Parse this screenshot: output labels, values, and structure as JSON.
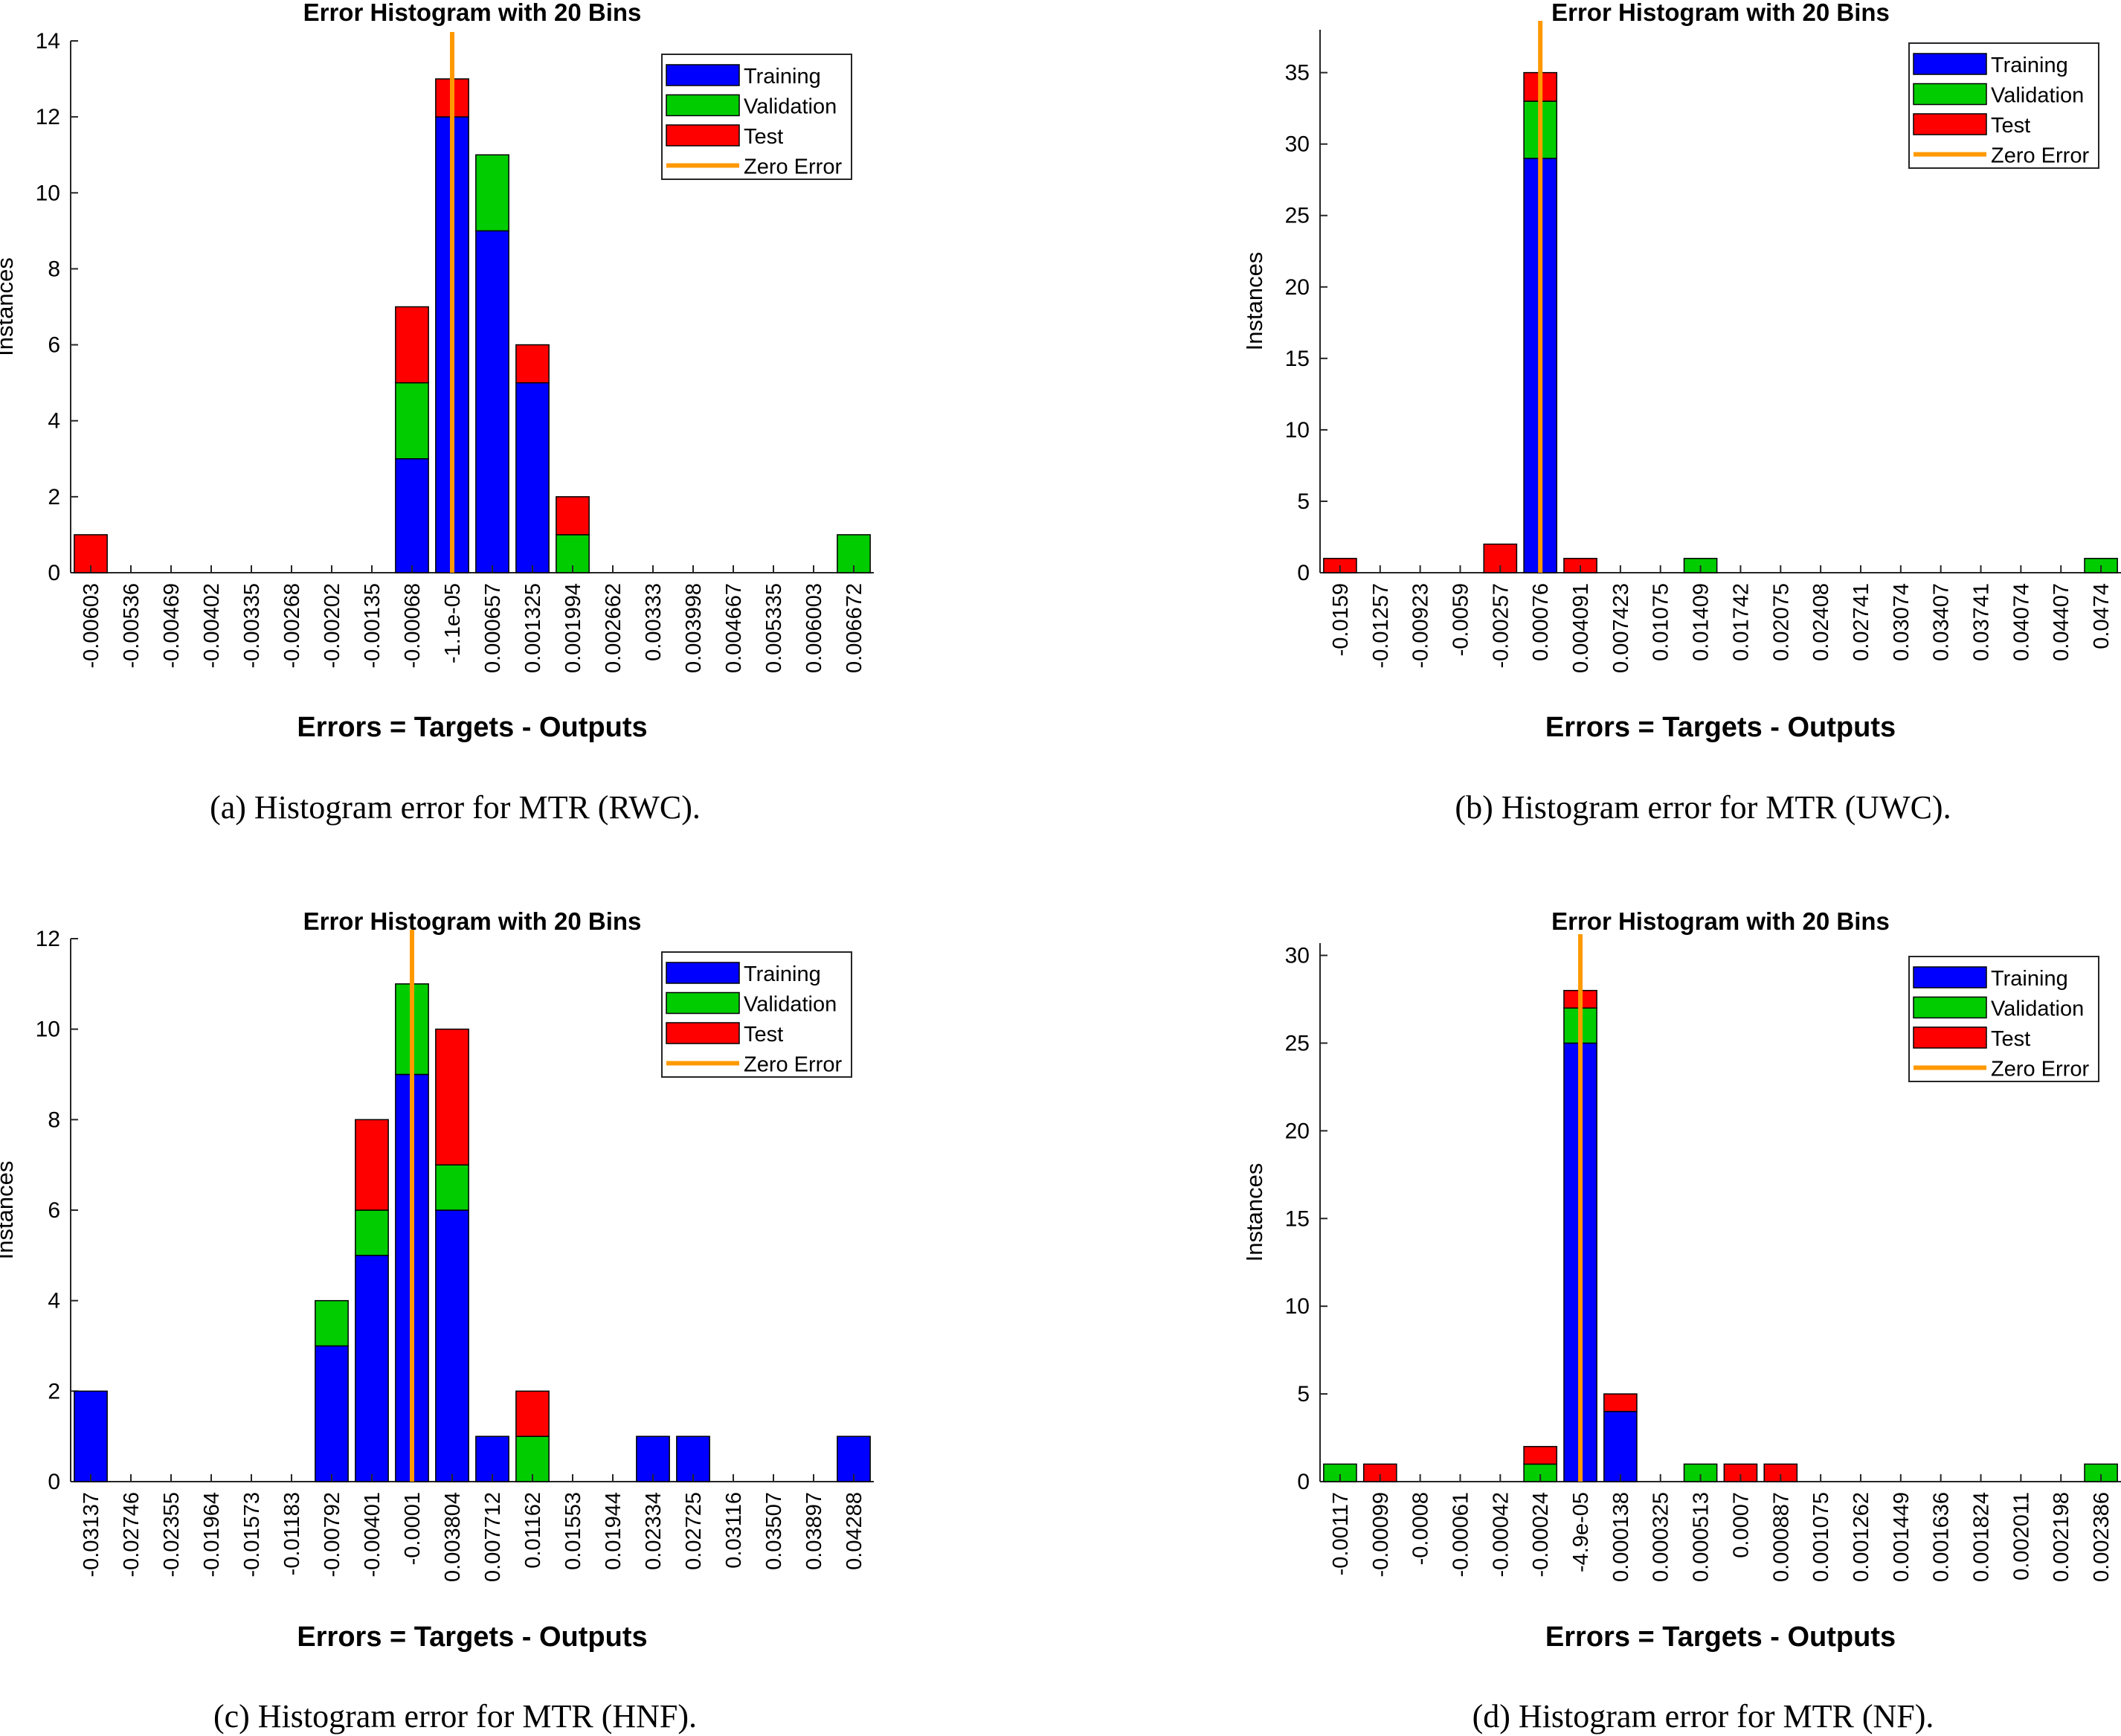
{
  "chart_data": [
    {
      "type": "bar",
      "stacked": true,
      "title": "Error Histogram with 20 Bins",
      "xlabel": "Errors = Targets - Outputs",
      "ylabel": "Instances",
      "caption": "(a) Histogram error for MTR (RWC).",
      "ylim": [
        0,
        14
      ],
      "yticks": [
        "0",
        "2",
        "4",
        "6",
        "8",
        "10",
        "12",
        "14"
      ],
      "zero_error_index": 9,
      "categories": [
        "-0.00603",
        "-0.00536",
        "-0.00469",
        "-0.00402",
        "-0.00335",
        "-0.00268",
        "-0.00202",
        "-0.00135",
        "-0.00068",
        "-1.1e-05",
        "0.000657",
        "0.001325",
        "0.001994",
        "0.002662",
        "0.00333",
        "0.003998",
        "0.004667",
        "0.005335",
        "0.006003",
        "0.006672"
      ],
      "series": [
        {
          "name": "Training",
          "color": "#0000ff",
          "values": [
            0,
            0,
            0,
            0,
            0,
            0,
            0,
            0,
            3,
            12,
            9,
            5,
            0,
            0,
            0,
            0,
            0,
            0,
            0,
            0
          ]
        },
        {
          "name": "Validation",
          "color": "#00cc00",
          "values": [
            0,
            0,
            0,
            0,
            0,
            0,
            0,
            0,
            2,
            0,
            2,
            0,
            1,
            0,
            0,
            0,
            0,
            0,
            0,
            1
          ]
        },
        {
          "name": "Test",
          "color": "#ff0000",
          "values": [
            1,
            0,
            0,
            0,
            0,
            0,
            0,
            0,
            2,
            1,
            0,
            1,
            1,
            0,
            0,
            0,
            0,
            0,
            0,
            0
          ]
        }
      ],
      "legend": [
        "Training",
        "Validation",
        "Test",
        "Zero Error"
      ],
      "legend_position": "top-right"
    },
    {
      "type": "bar",
      "stacked": true,
      "title": "Error Histogram with 20 Bins",
      "xlabel": "Errors = Targets - Outputs",
      "ylabel": "Instances",
      "caption": "(b) Histogram error for MTR (UWC).",
      "ylim": [
        0,
        38
      ],
      "yticks": [
        "0",
        "5",
        "10",
        "15",
        "20",
        "25",
        "30",
        "35"
      ],
      "zero_error_index": 5,
      "categories": [
        "-0.0159",
        "-0.01257",
        "-0.00923",
        "-0.0059",
        "-0.00257",
        "0.00076",
        "0.004091",
        "0.007423",
        "0.01075",
        "0.01409",
        "0.01742",
        "0.02075",
        "0.02408",
        "0.02741",
        "0.03074",
        "0.03407",
        "0.03741",
        "0.04074",
        "0.04407",
        "0.0474"
      ],
      "series": [
        {
          "name": "Training",
          "color": "#0000ff",
          "values": [
            0,
            0,
            0,
            0,
            0,
            29,
            0,
            0,
            0,
            0,
            0,
            0,
            0,
            0,
            0,
            0,
            0,
            0,
            0,
            0
          ]
        },
        {
          "name": "Validation",
          "color": "#00cc00",
          "values": [
            0,
            0,
            0,
            0,
            0,
            4,
            0,
            0,
            0,
            1,
            0,
            0,
            0,
            0,
            0,
            0,
            0,
            0,
            0,
            1
          ]
        },
        {
          "name": "Test",
          "color": "#ff0000",
          "values": [
            1,
            0,
            0,
            0,
            2,
            2,
            1,
            0,
            0,
            0,
            0,
            0,
            0,
            0,
            0,
            0,
            0,
            0,
            0,
            0
          ]
        }
      ],
      "legend": [
        "Training",
        "Validation",
        "Test",
        "Zero Error"
      ],
      "legend_position": "top-right"
    },
    {
      "type": "bar",
      "stacked": true,
      "title": "Error Histogram with 20 Bins",
      "xlabel": "Errors = Targets - Outputs",
      "ylabel": "Instances",
      "caption": "(c) Histogram error for MTR (HNF).",
      "ylim": [
        0,
        12
      ],
      "yticks": [
        "0",
        "2",
        "4",
        "6",
        "8",
        "10",
        "12"
      ],
      "zero_error_index": 8,
      "categories": [
        "-0.03137",
        "-0.02746",
        "-0.02355",
        "-0.01964",
        "-0.01573",
        "-0.01183",
        "-0.00792",
        "-0.00401",
        "-0.0001",
        "0.003804",
        "0.007712",
        "0.01162",
        "0.01553",
        "0.01944",
        "0.02334",
        "0.02725",
        "0.03116",
        "0.03507",
        "0.03897",
        "0.04288"
      ],
      "series": [
        {
          "name": "Training",
          "color": "#0000ff",
          "values": [
            2,
            0,
            0,
            0,
            0,
            0,
            3,
            5,
            9,
            6,
            1,
            0,
            0,
            0,
            1,
            1,
            0,
            0,
            0,
            1
          ]
        },
        {
          "name": "Validation",
          "color": "#00cc00",
          "values": [
            0,
            0,
            0,
            0,
            0,
            0,
            1,
            1,
            2,
            1,
            0,
            1,
            0,
            0,
            0,
            0,
            0,
            0,
            0,
            0
          ]
        },
        {
          "name": "Test",
          "color": "#ff0000",
          "values": [
            0,
            0,
            0,
            0,
            0,
            0,
            0,
            2,
            0,
            3,
            0,
            1,
            0,
            0,
            0,
            0,
            0,
            0,
            0,
            0
          ]
        }
      ],
      "legend": [
        "Training",
        "Validation",
        "Test",
        "Zero Error"
      ],
      "legend_position": "top-right"
    },
    {
      "type": "bar",
      "stacked": true,
      "title": "Error Histogram with 20 Bins",
      "xlabel": "Errors = Targets - Outputs",
      "ylabel": "Instances",
      "caption": "(d) Histogram error for MTR (NF).",
      "ylim": [
        0,
        30.7
      ],
      "yticks": [
        "0",
        "5",
        "10",
        "15",
        "20",
        "25",
        "30"
      ],
      "zero_error_index": 6,
      "categories": [
        "-0.00117",
        "-0.00099",
        "-0.0008",
        "-0.00061",
        "-0.00042",
        "-0.00024",
        "-4.9e-05",
        "0.000138",
        "0.000325",
        "0.000513",
        "0.0007",
        "0.000887",
        "0.001075",
        "0.001262",
        "0.001449",
        "0.001636",
        "0.001824",
        "0.002011",
        "0.002198",
        "0.002386"
      ],
      "series": [
        {
          "name": "Training",
          "color": "#0000ff",
          "values": [
            0,
            0,
            0,
            0,
            0,
            0,
            25,
            4,
            0,
            0,
            0,
            0,
            0,
            0,
            0,
            0,
            0,
            0,
            0,
            0
          ]
        },
        {
          "name": "Validation",
          "color": "#00cc00",
          "values": [
            1,
            0,
            0,
            0,
            0,
            1,
            2,
            0,
            0,
            1,
            0,
            0,
            0,
            0,
            0,
            0,
            0,
            0,
            0,
            1
          ]
        },
        {
          "name": "Test",
          "color": "#ff0000",
          "values": [
            0,
            1,
            0,
            0,
            0,
            1,
            1,
            1,
            0,
            0,
            1,
            1,
            0,
            0,
            0,
            0,
            0,
            0,
            0,
            0
          ]
        }
      ],
      "legend": [
        "Training",
        "Validation",
        "Test",
        "Zero Error"
      ],
      "legend_position": "top-right"
    }
  ],
  "zero_error_color": "#ff9900"
}
